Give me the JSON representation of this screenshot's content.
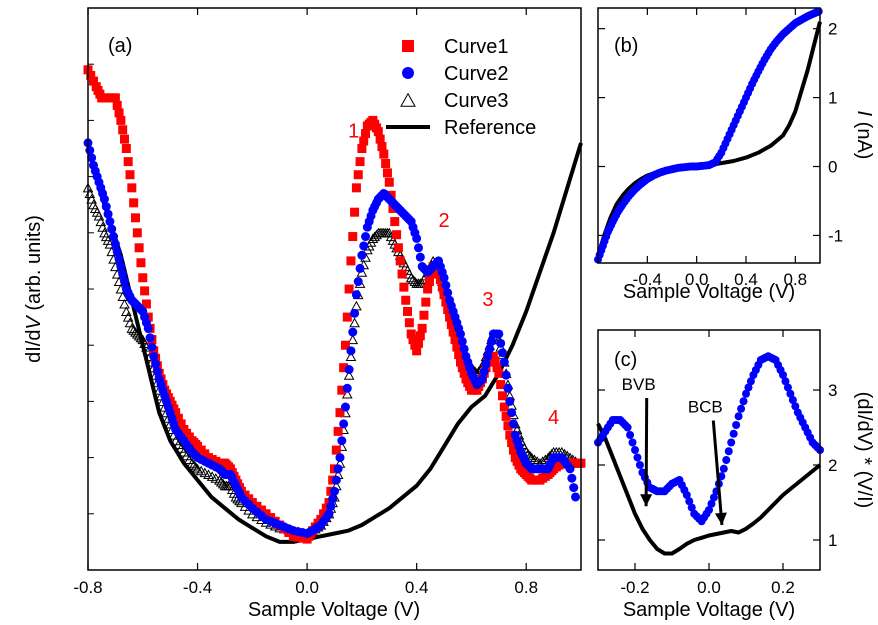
{
  "chart_data": [
    {
      "panel": "(a)",
      "type": "line",
      "xlabel": "Sample Voltage (V)",
      "ylabel_main": "dI/d",
      "ylabel_italic": "V",
      "ylabel_units": " (arb. units)",
      "xlim": [
        -0.8,
        1.0
      ],
      "ylim": [
        0,
        10
      ],
      "xticks": [
        -0.8,
        -0.4,
        0.0,
        0.4,
        0.8
      ],
      "xtick_labels": [
        "-0.8",
        "-0.4",
        "0.0",
        "0.4",
        "0.8"
      ],
      "legend": [
        "Curve1",
        "Curve2",
        "Curve3",
        "Reference"
      ],
      "legend_position": "top-right",
      "peak_labels": [
        {
          "text": "1",
          "x": 0.17,
          "y": 7.7
        },
        {
          "text": "2",
          "x": 0.5,
          "y": 6.1
        },
        {
          "text": "3",
          "x": 0.66,
          "y": 4.7
        },
        {
          "text": "4",
          "x": 0.9,
          "y": 2.6
        }
      ],
      "series": [
        {
          "name": "Curve1",
          "marker": "square",
          "color": "#ff0000",
          "x": [
            -0.8,
            -0.77,
            -0.75,
            -0.72,
            -0.7,
            -0.68,
            -0.66,
            -0.64,
            -0.62,
            -0.6,
            -0.58,
            -0.56,
            -0.54,
            -0.52,
            -0.5,
            -0.48,
            -0.45,
            -0.42,
            -0.4,
            -0.36,
            -0.32,
            -0.3,
            -0.28,
            -0.26,
            -0.24,
            -0.2,
            -0.15,
            -0.1,
            -0.05,
            0.0,
            0.02,
            0.05,
            0.08,
            0.1,
            0.12,
            0.14,
            0.16,
            0.18,
            0.2,
            0.22,
            0.24,
            0.26,
            0.28,
            0.3,
            0.32,
            0.34,
            0.36,
            0.38,
            0.4,
            0.42,
            0.44,
            0.46,
            0.48,
            0.5,
            0.52,
            0.54,
            0.56,
            0.58,
            0.6,
            0.62,
            0.64,
            0.66,
            0.68,
            0.7,
            0.72,
            0.74,
            0.76,
            0.78,
            0.8,
            0.82,
            0.85,
            0.88,
            0.9,
            0.93,
            0.96,
            1.0
          ],
          "y": [
            8.9,
            8.6,
            8.4,
            8.4,
            8.4,
            8.0,
            7.5,
            6.8,
            6.0,
            5.2,
            4.5,
            3.9,
            3.5,
            3.2,
            3.0,
            2.8,
            2.5,
            2.3,
            2.2,
            2.0,
            1.9,
            1.9,
            1.8,
            1.6,
            1.4,
            1.2,
            1.0,
            0.8,
            0.6,
            0.55,
            0.7,
            0.9,
            1.2,
            1.8,
            2.8,
            4.0,
            5.5,
            6.8,
            7.5,
            7.9,
            8.0,
            7.8,
            7.4,
            6.9,
            6.2,
            5.5,
            4.8,
            4.2,
            3.9,
            4.3,
            5.0,
            5.4,
            5.3,
            4.9,
            4.5,
            4.1,
            3.7,
            3.4,
            3.2,
            3.2,
            3.4,
            3.7,
            3.8,
            3.5,
            2.9,
            2.4,
            2.0,
            1.8,
            1.7,
            1.6,
            1.6,
            1.7,
            1.8,
            1.9,
            1.9,
            1.9
          ]
        },
        {
          "name": "Curve2",
          "marker": "circle",
          "color": "#0000ff",
          "x": [
            -0.8,
            -0.78,
            -0.76,
            -0.74,
            -0.72,
            -0.7,
            -0.68,
            -0.66,
            -0.64,
            -0.62,
            -0.6,
            -0.58,
            -0.56,
            -0.54,
            -0.52,
            -0.5,
            -0.48,
            -0.45,
            -0.42,
            -0.4,
            -0.36,
            -0.32,
            -0.3,
            -0.28,
            -0.26,
            -0.24,
            -0.2,
            -0.15,
            -0.1,
            -0.05,
            0.0,
            0.02,
            0.05,
            0.08,
            0.1,
            0.12,
            0.14,
            0.16,
            0.18,
            0.2,
            0.22,
            0.24,
            0.26,
            0.28,
            0.3,
            0.32,
            0.34,
            0.36,
            0.38,
            0.4,
            0.42,
            0.44,
            0.46,
            0.48,
            0.5,
            0.52,
            0.54,
            0.56,
            0.58,
            0.6,
            0.62,
            0.64,
            0.66,
            0.68,
            0.7,
            0.72,
            0.74,
            0.76,
            0.78,
            0.8,
            0.82,
            0.85,
            0.88,
            0.9,
            0.93,
            0.96,
            0.98
          ],
          "y": [
            7.6,
            7.2,
            6.9,
            6.6,
            6.2,
            5.8,
            5.4,
            5.0,
            4.8,
            4.7,
            4.6,
            4.3,
            3.8,
            3.4,
            3.1,
            2.8,
            2.5,
            2.3,
            2.1,
            2.0,
            1.9,
            1.8,
            1.7,
            1.7,
            1.5,
            1.3,
            1.1,
            0.9,
            0.8,
            0.7,
            0.65,
            0.7,
            0.8,
            1.0,
            1.4,
            2.0,
            2.9,
            3.9,
            4.9,
            5.6,
            6.1,
            6.4,
            6.6,
            6.7,
            6.6,
            6.5,
            6.4,
            6.3,
            6.2,
            5.9,
            5.4,
            5.3,
            5.4,
            5.5,
            5.2,
            4.8,
            4.5,
            4.2,
            3.8,
            3.5,
            3.3,
            3.4,
            3.8,
            4.2,
            4.2,
            3.7,
            3.0,
            2.4,
            2.1,
            1.9,
            1.8,
            1.8,
            1.8,
            2.0,
            2.0,
            1.8,
            1.3
          ]
        },
        {
          "name": "Curve3",
          "marker": "triangle",
          "color": "#000000",
          "x": [
            -0.8,
            -0.78,
            -0.76,
            -0.74,
            -0.72,
            -0.7,
            -0.68,
            -0.66,
            -0.64,
            -0.62,
            -0.6,
            -0.58,
            -0.56,
            -0.54,
            -0.52,
            -0.5,
            -0.48,
            -0.45,
            -0.42,
            -0.4,
            -0.36,
            -0.32,
            -0.3,
            -0.28,
            -0.26,
            -0.24,
            -0.2,
            -0.15,
            -0.1,
            -0.05,
            0.0,
            0.02,
            0.05,
            0.08,
            0.1,
            0.12,
            0.14,
            0.16,
            0.18,
            0.2,
            0.22,
            0.24,
            0.26,
            0.28,
            0.3,
            0.32,
            0.34,
            0.36,
            0.38,
            0.4,
            0.42,
            0.44,
            0.46,
            0.48,
            0.5,
            0.52,
            0.54,
            0.56,
            0.58,
            0.6,
            0.62,
            0.64,
            0.66,
            0.68,
            0.7,
            0.72,
            0.74,
            0.76,
            0.78,
            0.8,
            0.82,
            0.85,
            0.88,
            0.9,
            0.93,
            0.96,
            0.99
          ],
          "y": [
            6.8,
            6.5,
            6.3,
            6.0,
            5.8,
            5.4,
            5.0,
            4.6,
            4.3,
            4.2,
            4.1,
            3.9,
            3.6,
            3.2,
            2.9,
            2.6,
            2.3,
            2.1,
            1.9,
            1.8,
            1.7,
            1.6,
            1.5,
            1.5,
            1.3,
            1.2,
            1.0,
            0.85,
            0.75,
            0.7,
            0.65,
            0.7,
            0.8,
            1.0,
            1.3,
            1.9,
            2.8,
            3.8,
            4.7,
            5.3,
            5.7,
            5.9,
            6.0,
            6.0,
            6.0,
            5.8,
            5.6,
            5.4,
            5.2,
            5.1,
            5.1,
            5.3,
            5.5,
            5.4,
            5.0,
            4.7,
            4.4,
            4.1,
            3.8,
            3.6,
            3.5,
            3.6,
            3.9,
            4.2,
            4.1,
            3.7,
            3.1,
            2.6,
            2.3,
            2.1,
            2.0,
            1.9,
            2.0,
            2.1,
            2.1,
            2.0,
            1.9
          ]
        },
        {
          "name": "Reference",
          "marker": "line",
          "color": "#000000",
          "x": [
            -0.78,
            -0.76,
            -0.74,
            -0.72,
            -0.7,
            -0.68,
            -0.65,
            -0.62,
            -0.6,
            -0.58,
            -0.56,
            -0.54,
            -0.5,
            -0.45,
            -0.4,
            -0.35,
            -0.3,
            -0.25,
            -0.2,
            -0.15,
            -0.1,
            -0.05,
            0.0,
            0.05,
            0.1,
            0.15,
            0.2,
            0.25,
            0.3,
            0.35,
            0.4,
            0.45,
            0.5,
            0.55,
            0.6,
            0.65,
            0.7,
            0.75,
            0.8,
            0.85,
            0.9,
            0.95,
            1.0
          ],
          "y": [
            7.2,
            6.8,
            6.5,
            6.2,
            5.9,
            5.6,
            5.0,
            4.4,
            4.0,
            3.6,
            3.2,
            2.8,
            2.3,
            1.9,
            1.6,
            1.3,
            1.1,
            0.9,
            0.75,
            0.6,
            0.5,
            0.5,
            0.55,
            0.6,
            0.65,
            0.7,
            0.8,
            0.95,
            1.1,
            1.3,
            1.5,
            1.8,
            2.2,
            2.6,
            2.9,
            3.1,
            3.5,
            4.0,
            4.6,
            5.3,
            6.0,
            6.8,
            7.6
          ]
        }
      ]
    },
    {
      "panel": "(b)",
      "type": "line",
      "xlabel": "Sample Voltage (V)",
      "ylabel_italic": "I",
      "ylabel_units": " (nA)",
      "xlim": [
        -0.8,
        1.0
      ],
      "ylim": [
        -1.4,
        2.3
      ],
      "xticks": [
        -0.4,
        0.0,
        0.4,
        0.8
      ],
      "xtick_labels": [
        "-0.4",
        "0.0",
        "0.4",
        "0.8"
      ],
      "yticks": [
        -1,
        0,
        1,
        2
      ],
      "ytick_labels": [
        "-1",
        "0",
        "1",
        "2"
      ],
      "yaxis_position": "right",
      "series": [
        {
          "name": "blue",
          "marker": "circle",
          "color": "#0000ff",
          "x": [
            -0.8,
            -0.76,
            -0.72,
            -0.68,
            -0.64,
            -0.6,
            -0.55,
            -0.5,
            -0.45,
            -0.4,
            -0.35,
            -0.3,
            -0.25,
            -0.2,
            -0.15,
            -0.1,
            -0.05,
            0.0,
            0.05,
            0.1,
            0.15,
            0.2,
            0.25,
            0.3,
            0.35,
            0.4,
            0.45,
            0.5,
            0.55,
            0.6,
            0.65,
            0.7,
            0.75,
            0.8,
            0.85,
            0.9,
            0.95,
            0.99
          ],
          "y": [
            -1.35,
            -1.15,
            -0.95,
            -0.8,
            -0.66,
            -0.55,
            -0.43,
            -0.33,
            -0.25,
            -0.18,
            -0.13,
            -0.09,
            -0.06,
            -0.04,
            -0.02,
            -0.01,
            0.0,
            0.0,
            0.01,
            0.02,
            0.06,
            0.2,
            0.4,
            0.6,
            0.8,
            1.0,
            1.2,
            1.38,
            1.55,
            1.7,
            1.82,
            1.92,
            2.0,
            2.08,
            2.13,
            2.18,
            2.22,
            2.25
          ]
        },
        {
          "name": "black",
          "marker": "line",
          "color": "#000000",
          "x": [
            -0.8,
            -0.75,
            -0.7,
            -0.65,
            -0.6,
            -0.55,
            -0.5,
            -0.45,
            -0.4,
            -0.3,
            -0.2,
            -0.1,
            0.0,
            0.1,
            0.2,
            0.3,
            0.4,
            0.5,
            0.6,
            0.7,
            0.75,
            0.8,
            0.85,
            0.9,
            0.95,
            1.0
          ],
          "y": [
            -1.3,
            -1.0,
            -0.75,
            -0.55,
            -0.42,
            -0.32,
            -0.24,
            -0.18,
            -0.13,
            -0.07,
            -0.04,
            -0.02,
            0.0,
            0.02,
            0.05,
            0.08,
            0.13,
            0.2,
            0.3,
            0.45,
            0.6,
            0.8,
            1.1,
            1.4,
            1.75,
            2.1
          ]
        }
      ]
    },
    {
      "panel": "(c)",
      "type": "line",
      "xlabel": "Sample Voltage (V)",
      "ylabel_text": "(dI/dV) * (V/I)",
      "xlim": [
        -0.3,
        0.3
      ],
      "ylim": [
        0.6,
        3.8
      ],
      "xticks": [
        -0.2,
        0.0,
        0.2
      ],
      "xtick_labels": [
        "-0.2",
        "0.0",
        "0.2"
      ],
      "yticks": [
        1,
        2,
        3
      ],
      "ytick_labels": [
        "1",
        "2",
        "3"
      ],
      "yaxis_position": "right",
      "annotations": [
        {
          "text": "BVB",
          "x": -0.19,
          "y": 3.0,
          "arrow_to_x": -0.17,
          "arrow_to_y": 1.45
        },
        {
          "text": "BCB",
          "x": -0.01,
          "y": 2.7,
          "arrow_to_x": 0.035,
          "arrow_to_y": 1.2
        }
      ],
      "series": [
        {
          "name": "blue",
          "marker": "circle",
          "color": "#0000ff",
          "x": [
            -0.3,
            -0.28,
            -0.26,
            -0.24,
            -0.22,
            -0.2,
            -0.18,
            -0.16,
            -0.14,
            -0.12,
            -0.1,
            -0.08,
            -0.06,
            -0.04,
            -0.02,
            0.0,
            0.02,
            0.04,
            0.06,
            0.08,
            0.1,
            0.12,
            0.14,
            0.16,
            0.18,
            0.2,
            0.22,
            0.24,
            0.26,
            0.28,
            0.3
          ],
          "y": [
            2.3,
            2.45,
            2.6,
            2.6,
            2.5,
            2.2,
            1.9,
            1.7,
            1.65,
            1.65,
            1.75,
            1.8,
            1.6,
            1.35,
            1.25,
            1.4,
            1.65,
            1.95,
            2.3,
            2.65,
            2.95,
            3.2,
            3.4,
            3.45,
            3.4,
            3.2,
            2.95,
            2.7,
            2.5,
            2.3,
            2.2
          ]
        },
        {
          "name": "black",
          "marker": "line",
          "color": "#000000",
          "x": [
            -0.3,
            -0.28,
            -0.26,
            -0.24,
            -0.22,
            -0.2,
            -0.18,
            -0.16,
            -0.14,
            -0.12,
            -0.1,
            -0.08,
            -0.06,
            -0.04,
            -0.02,
            0.0,
            0.02,
            0.04,
            0.06,
            0.08,
            0.1,
            0.12,
            0.14,
            0.16,
            0.18,
            0.2,
            0.22,
            0.24,
            0.26,
            0.28,
            0.3
          ],
          "y": [
            2.55,
            2.35,
            2.1,
            1.85,
            1.6,
            1.35,
            1.15,
            1.0,
            0.88,
            0.82,
            0.82,
            0.88,
            0.95,
            1.0,
            1.03,
            1.06,
            1.08,
            1.1,
            1.12,
            1.1,
            1.15,
            1.22,
            1.3,
            1.4,
            1.5,
            1.6,
            1.68,
            1.76,
            1.84,
            1.92,
            2.0
          ]
        }
      ]
    }
  ]
}
